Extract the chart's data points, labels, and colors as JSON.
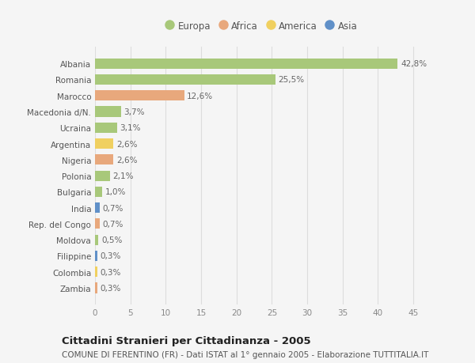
{
  "countries": [
    "Albania",
    "Romania",
    "Marocco",
    "Macedonia d/N.",
    "Ucraina",
    "Argentina",
    "Nigeria",
    "Polonia",
    "Bulgaria",
    "India",
    "Rep. del Congo",
    "Moldova",
    "Filippine",
    "Colombia",
    "Zambia"
  ],
  "values": [
    42.8,
    25.5,
    12.6,
    3.7,
    3.1,
    2.6,
    2.6,
    2.1,
    1.0,
    0.7,
    0.7,
    0.5,
    0.3,
    0.3,
    0.3
  ],
  "labels": [
    "42,8%",
    "25,5%",
    "12,6%",
    "3,7%",
    "3,1%",
    "2,6%",
    "2,6%",
    "2,1%",
    "1,0%",
    "0,7%",
    "0,7%",
    "0,5%",
    "0,3%",
    "0,3%",
    "0,3%"
  ],
  "continents": [
    "Europa",
    "Europa",
    "Africa",
    "Europa",
    "Europa",
    "America",
    "Africa",
    "Europa",
    "Europa",
    "Asia",
    "Africa",
    "Europa",
    "Asia",
    "America",
    "Africa"
  ],
  "colors": {
    "Europa": "#a8c87a",
    "Africa": "#e8a87c",
    "America": "#f0d060",
    "Asia": "#6090c8"
  },
  "xlim": [
    0,
    47
  ],
  "xticks": [
    0,
    5,
    10,
    15,
    20,
    25,
    30,
    35,
    40,
    45
  ],
  "title": "Cittadini Stranieri per Cittadinanza - 2005",
  "subtitle": "COMUNE DI FERENTINO (FR) - Dati ISTAT al 1° gennaio 2005 - Elaborazione TUTTITALIA.IT",
  "bg_color": "#f5f5f5",
  "grid_color": "#dddddd",
  "bar_height": 0.65,
  "label_fontsize": 7.5,
  "tick_fontsize": 7.5,
  "title_fontsize": 9.5,
  "subtitle_fontsize": 7.5,
  "legend_labels": [
    "Europa",
    "Africa",
    "America",
    "Asia"
  ]
}
